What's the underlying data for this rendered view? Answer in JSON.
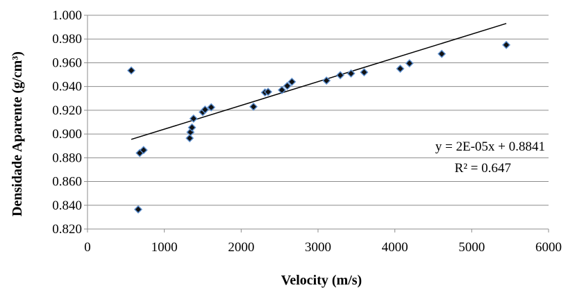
{
  "chart_data": {
    "type": "scatter",
    "xlabel": "Velocity (m/s)",
    "ylabel": "Densidade Aparente (g/cm³)",
    "xlim": [
      0,
      6000
    ],
    "ylim": [
      0.82,
      1.0
    ],
    "x_ticks": [
      "0",
      "1000",
      "2000",
      "3000",
      "4000",
      "5000",
      "6000"
    ],
    "y_ticks": [
      "0.820",
      "0.840",
      "0.860",
      "0.880",
      "0.900",
      "0.920",
      "0.940",
      "0.960",
      "0.980",
      "1.000"
    ],
    "grid": {
      "horizontal": true,
      "vertical": false
    },
    "marker": {
      "shape": "diamond",
      "fill": "#111111",
      "edge": "#5b8fd0"
    },
    "trendline": {
      "slope": 2e-05,
      "intercept": 0.8841,
      "x_range": [
        570,
        5450
      ],
      "color": "#000000"
    },
    "trendline_labels": {
      "equation": "y = 2E-05x + 0.8841",
      "r2": "R² = 0.647"
    },
    "points": [
      {
        "x": 570,
        "y": 0.9535
      },
      {
        "x": 660,
        "y": 0.8365
      },
      {
        "x": 680,
        "y": 0.884
      },
      {
        "x": 730,
        "y": 0.8865
      },
      {
        "x": 1330,
        "y": 0.8965
      },
      {
        "x": 1340,
        "y": 0.9015
      },
      {
        "x": 1360,
        "y": 0.9055
      },
      {
        "x": 1380,
        "y": 0.913
      },
      {
        "x": 1500,
        "y": 0.9185
      },
      {
        "x": 1530,
        "y": 0.9205
      },
      {
        "x": 1610,
        "y": 0.9225
      },
      {
        "x": 2160,
        "y": 0.923
      },
      {
        "x": 2310,
        "y": 0.935
      },
      {
        "x": 2350,
        "y": 0.9355
      },
      {
        "x": 2530,
        "y": 0.937
      },
      {
        "x": 2600,
        "y": 0.9405
      },
      {
        "x": 2660,
        "y": 0.944
      },
      {
        "x": 3110,
        "y": 0.945
      },
      {
        "x": 3290,
        "y": 0.9495
      },
      {
        "x": 3430,
        "y": 0.951
      },
      {
        "x": 3600,
        "y": 0.952
      },
      {
        "x": 4070,
        "y": 0.955
      },
      {
        "x": 4190,
        "y": 0.9595
      },
      {
        "x": 4610,
        "y": 0.9675
      },
      {
        "x": 5450,
        "y": 0.975
      }
    ]
  }
}
